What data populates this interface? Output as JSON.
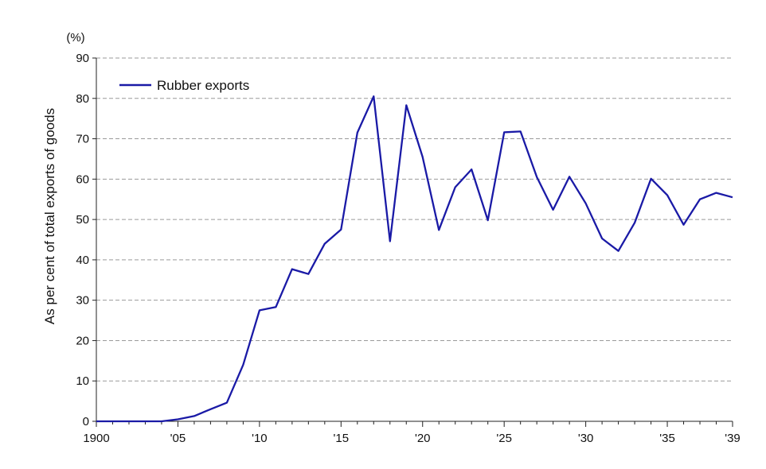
{
  "chart_data": {
    "type": "line",
    "ylabel": "As per cent of total exports of goods",
    "yunit": "(%)",
    "ylim": [
      0,
      90
    ],
    "yticks": [
      0,
      10,
      20,
      30,
      40,
      50,
      60,
      70,
      80,
      90
    ],
    "xlim": [
      1900,
      1939
    ],
    "xticks": [
      {
        "value": 1900,
        "label": "1900"
      },
      {
        "value": 1905,
        "label": "'05"
      },
      {
        "value": 1910,
        "label": "'10"
      },
      {
        "value": 1915,
        "label": "'15"
      },
      {
        "value": 1920,
        "label": "'20"
      },
      {
        "value": 1925,
        "label": "'25"
      },
      {
        "value": 1930,
        "label": "'30"
      },
      {
        "value": 1935,
        "label": "'35"
      },
      {
        "value": 1939,
        "label": "'39"
      }
    ],
    "grid": "horizontal dashed",
    "legend_position": "top-left",
    "series": [
      {
        "name": "Rubber exports",
        "color": "#1a1aa6",
        "x": [
          1900,
          1901,
          1902,
          1903,
          1904,
          1905,
          1906,
          1907,
          1908,
          1909,
          1910,
          1911,
          1912,
          1913,
          1914,
          1915,
          1916,
          1917,
          1918,
          1919,
          1920,
          1921,
          1922,
          1923,
          1924,
          1925,
          1926,
          1927,
          1928,
          1929,
          1930,
          1931,
          1932,
          1933,
          1934,
          1935,
          1936,
          1937,
          1938,
          1939
        ],
        "y": [
          0,
          0,
          0,
          0,
          0,
          0.5,
          1.3,
          3,
          4.6,
          14,
          27.5,
          28.3,
          37.7,
          36.5,
          44,
          47.5,
          71.5,
          80.5,
          44.6,
          78.3,
          65.5,
          47.4,
          58,
          62.4,
          49.8,
          71.6,
          71.8,
          60.5,
          52.4,
          60.6,
          54,
          45.3,
          42.2,
          49.2,
          60.1,
          56,
          48.7,
          55,
          56.6,
          55.5
        ]
      }
    ]
  }
}
